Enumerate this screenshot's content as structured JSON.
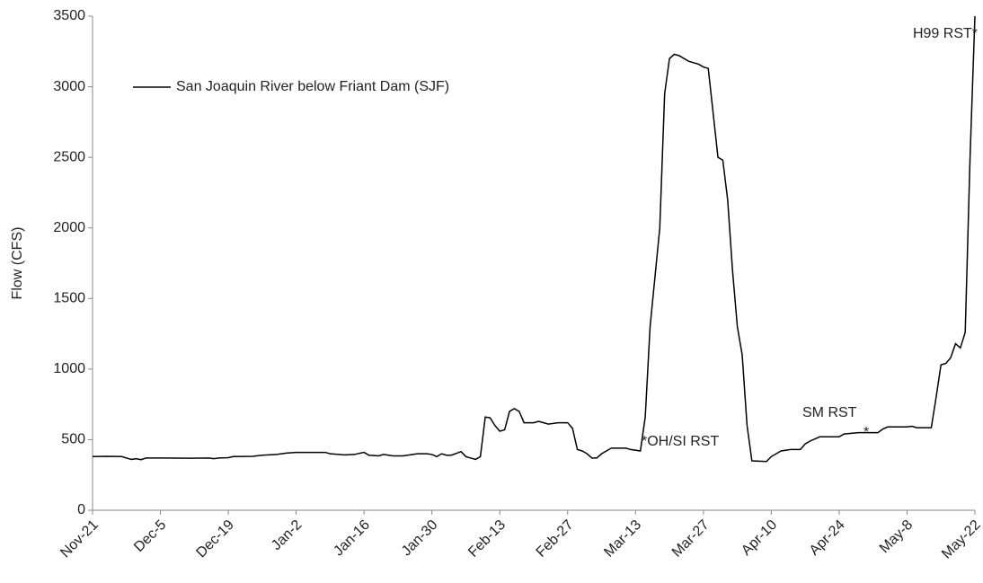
{
  "chart_data": {
    "type": "line",
    "ylabel": "Flow (CFS)",
    "xlim": [
      0,
      182
    ],
    "ylim": [
      0,
      3500
    ],
    "yticks": [
      0,
      500,
      1000,
      1500,
      2000,
      2500,
      3000,
      3500
    ],
    "xticks": [
      {
        "value": 0,
        "label": "Nov-21"
      },
      {
        "value": 14,
        "label": "Dec-5"
      },
      {
        "value": 28,
        "label": "Dec-19"
      },
      {
        "value": 42,
        "label": "Jan-2"
      },
      {
        "value": 56,
        "label": "Jan-16"
      },
      {
        "value": 70,
        "label": "Jan-30"
      },
      {
        "value": 84,
        "label": "Feb-13"
      },
      {
        "value": 98,
        "label": "Feb-27"
      },
      {
        "value": 112,
        "label": "Mar-13"
      },
      {
        "value": 126,
        "label": "Mar-27"
      },
      {
        "value": 140,
        "label": "Apr-10"
      },
      {
        "value": 154,
        "label": "Apr-24"
      },
      {
        "value": 168,
        "label": "May-8"
      },
      {
        "value": 182,
        "label": "May-22"
      }
    ],
    "legend": "upper-left",
    "x": [
      0,
      3,
      6,
      8,
      9,
      10,
      11,
      15,
      20,
      24,
      25,
      26,
      28,
      29,
      33,
      35,
      38,
      40,
      42,
      48,
      49,
      52,
      54,
      56,
      57,
      59,
      60,
      62,
      64,
      65,
      67,
      69,
      70,
      71,
      72,
      73,
      74,
      76,
      77,
      79,
      80,
      81,
      82,
      83,
      84,
      85,
      86,
      87,
      88,
      89,
      91,
      92,
      94,
      96,
      98,
      99,
      100,
      101,
      102,
      103,
      104,
      105,
      107,
      110,
      111,
      113,
      114,
      115,
      117,
      118,
      119,
      120,
      121,
      123,
      125,
      126,
      127,
      129,
      130,
      131,
      132,
      133,
      134,
      135,
      136,
      139,
      140,
      141,
      142,
      144,
      146,
      147,
      148,
      150,
      154,
      155,
      158,
      162,
      163,
      164,
      168,
      169,
      170,
      173,
      174,
      175,
      176,
      177,
      178,
      179,
      180,
      181,
      182
    ],
    "series": [
      {
        "name": "San Joaquin River below Friant Dam (SJF)",
        "color": "#000000",
        "values": [
          380,
          382,
          380,
          360,
          365,
          358,
          370,
          370,
          368,
          370,
          365,
          370,
          372,
          380,
          382,
          390,
          395,
          405,
          410,
          410,
          400,
          392,
          395,
          410,
          390,
          385,
          395,
          385,
          385,
          390,
          400,
          400,
          395,
          380,
          400,
          390,
          390,
          415,
          380,
          360,
          380,
          660,
          655,
          600,
          560,
          570,
          700,
          720,
          700,
          620,
          620,
          630,
          610,
          620,
          620,
          580,
          430,
          420,
          400,
          370,
          370,
          400,
          440,
          440,
          430,
          420,
          660,
          1300,
          2000,
          2950,
          3200,
          3230,
          3220,
          3180,
          3160,
          3140,
          3130,
          2500,
          2480,
          2200,
          1700,
          1300,
          1100,
          600,
          350,
          345,
          380,
          400,
          420,
          430,
          430,
          470,
          490,
          520,
          520,
          540,
          550,
          550,
          575,
          590,
          590,
          595,
          585,
          585,
          800,
          1030,
          1040,
          1080,
          1180,
          1150,
          1260,
          2500,
          3500
        ]
      }
    ],
    "annotations": [
      "*OH/SI RST",
      "SM RST",
      "*",
      "H99 RST*"
    ]
  }
}
